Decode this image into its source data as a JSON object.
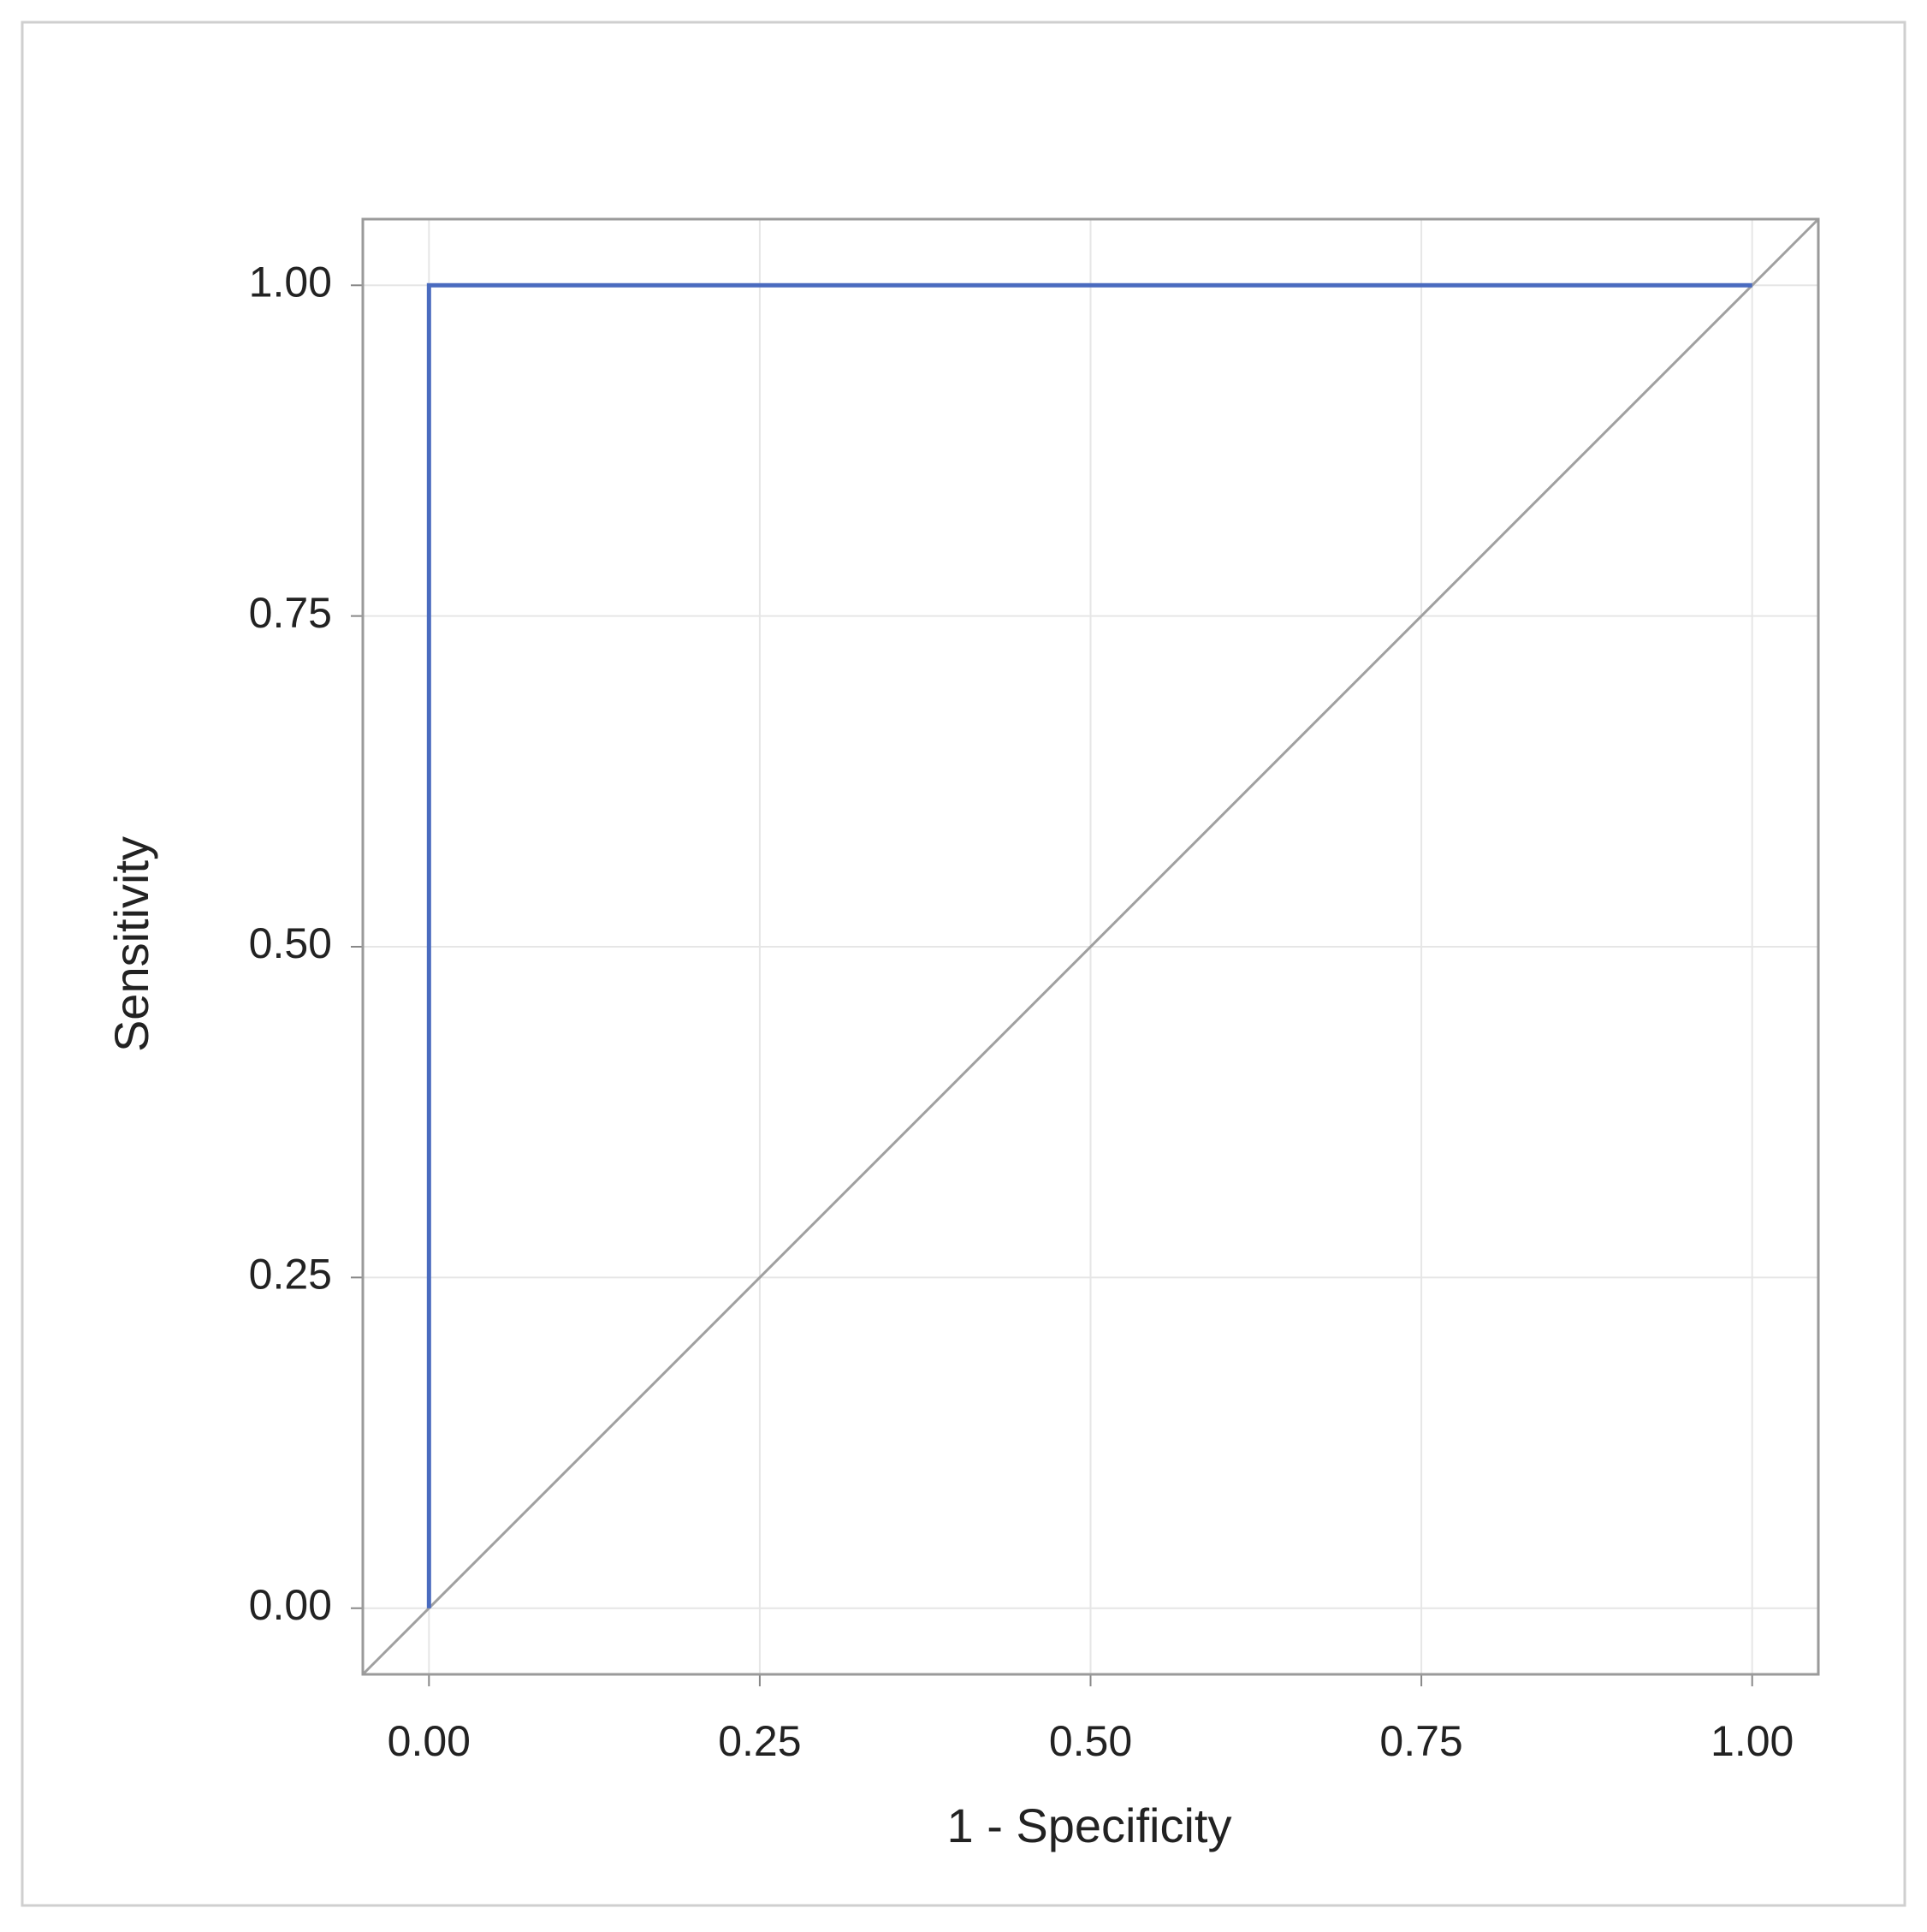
{
  "chart_data": {
    "type": "line",
    "xlabel": "1 - Specificity",
    "ylabel": "Sensitivity",
    "xlim": [
      -0.05,
      1.05
    ],
    "ylim": [
      -0.05,
      1.05
    ],
    "xticks": [
      {
        "value": 0,
        "label": "0.00"
      },
      {
        "value": 0.25,
        "label": "0.25"
      },
      {
        "value": 0.5,
        "label": "0.50"
      },
      {
        "value": 0.75,
        "label": "0.75"
      },
      {
        "value": 1,
        "label": "1.00"
      }
    ],
    "yticks": [
      {
        "value": 0,
        "label": "0.00"
      },
      {
        "value": 0.25,
        "label": "0.25"
      },
      {
        "value": 0.5,
        "label": "0.50"
      },
      {
        "value": 0.75,
        "label": "0.75"
      },
      {
        "value": 1,
        "label": "1.00"
      }
    ],
    "grid": true,
    "series": [
      {
        "color": "#a0a0a0",
        "x": [
          -0.05,
          1.05
        ],
        "values": [
          -0.05,
          1.05
        ]
      },
      {
        "color": "#4a6bbf",
        "x": [
          0,
          0,
          1
        ],
        "values": [
          0,
          1,
          1
        ]
      }
    ]
  }
}
